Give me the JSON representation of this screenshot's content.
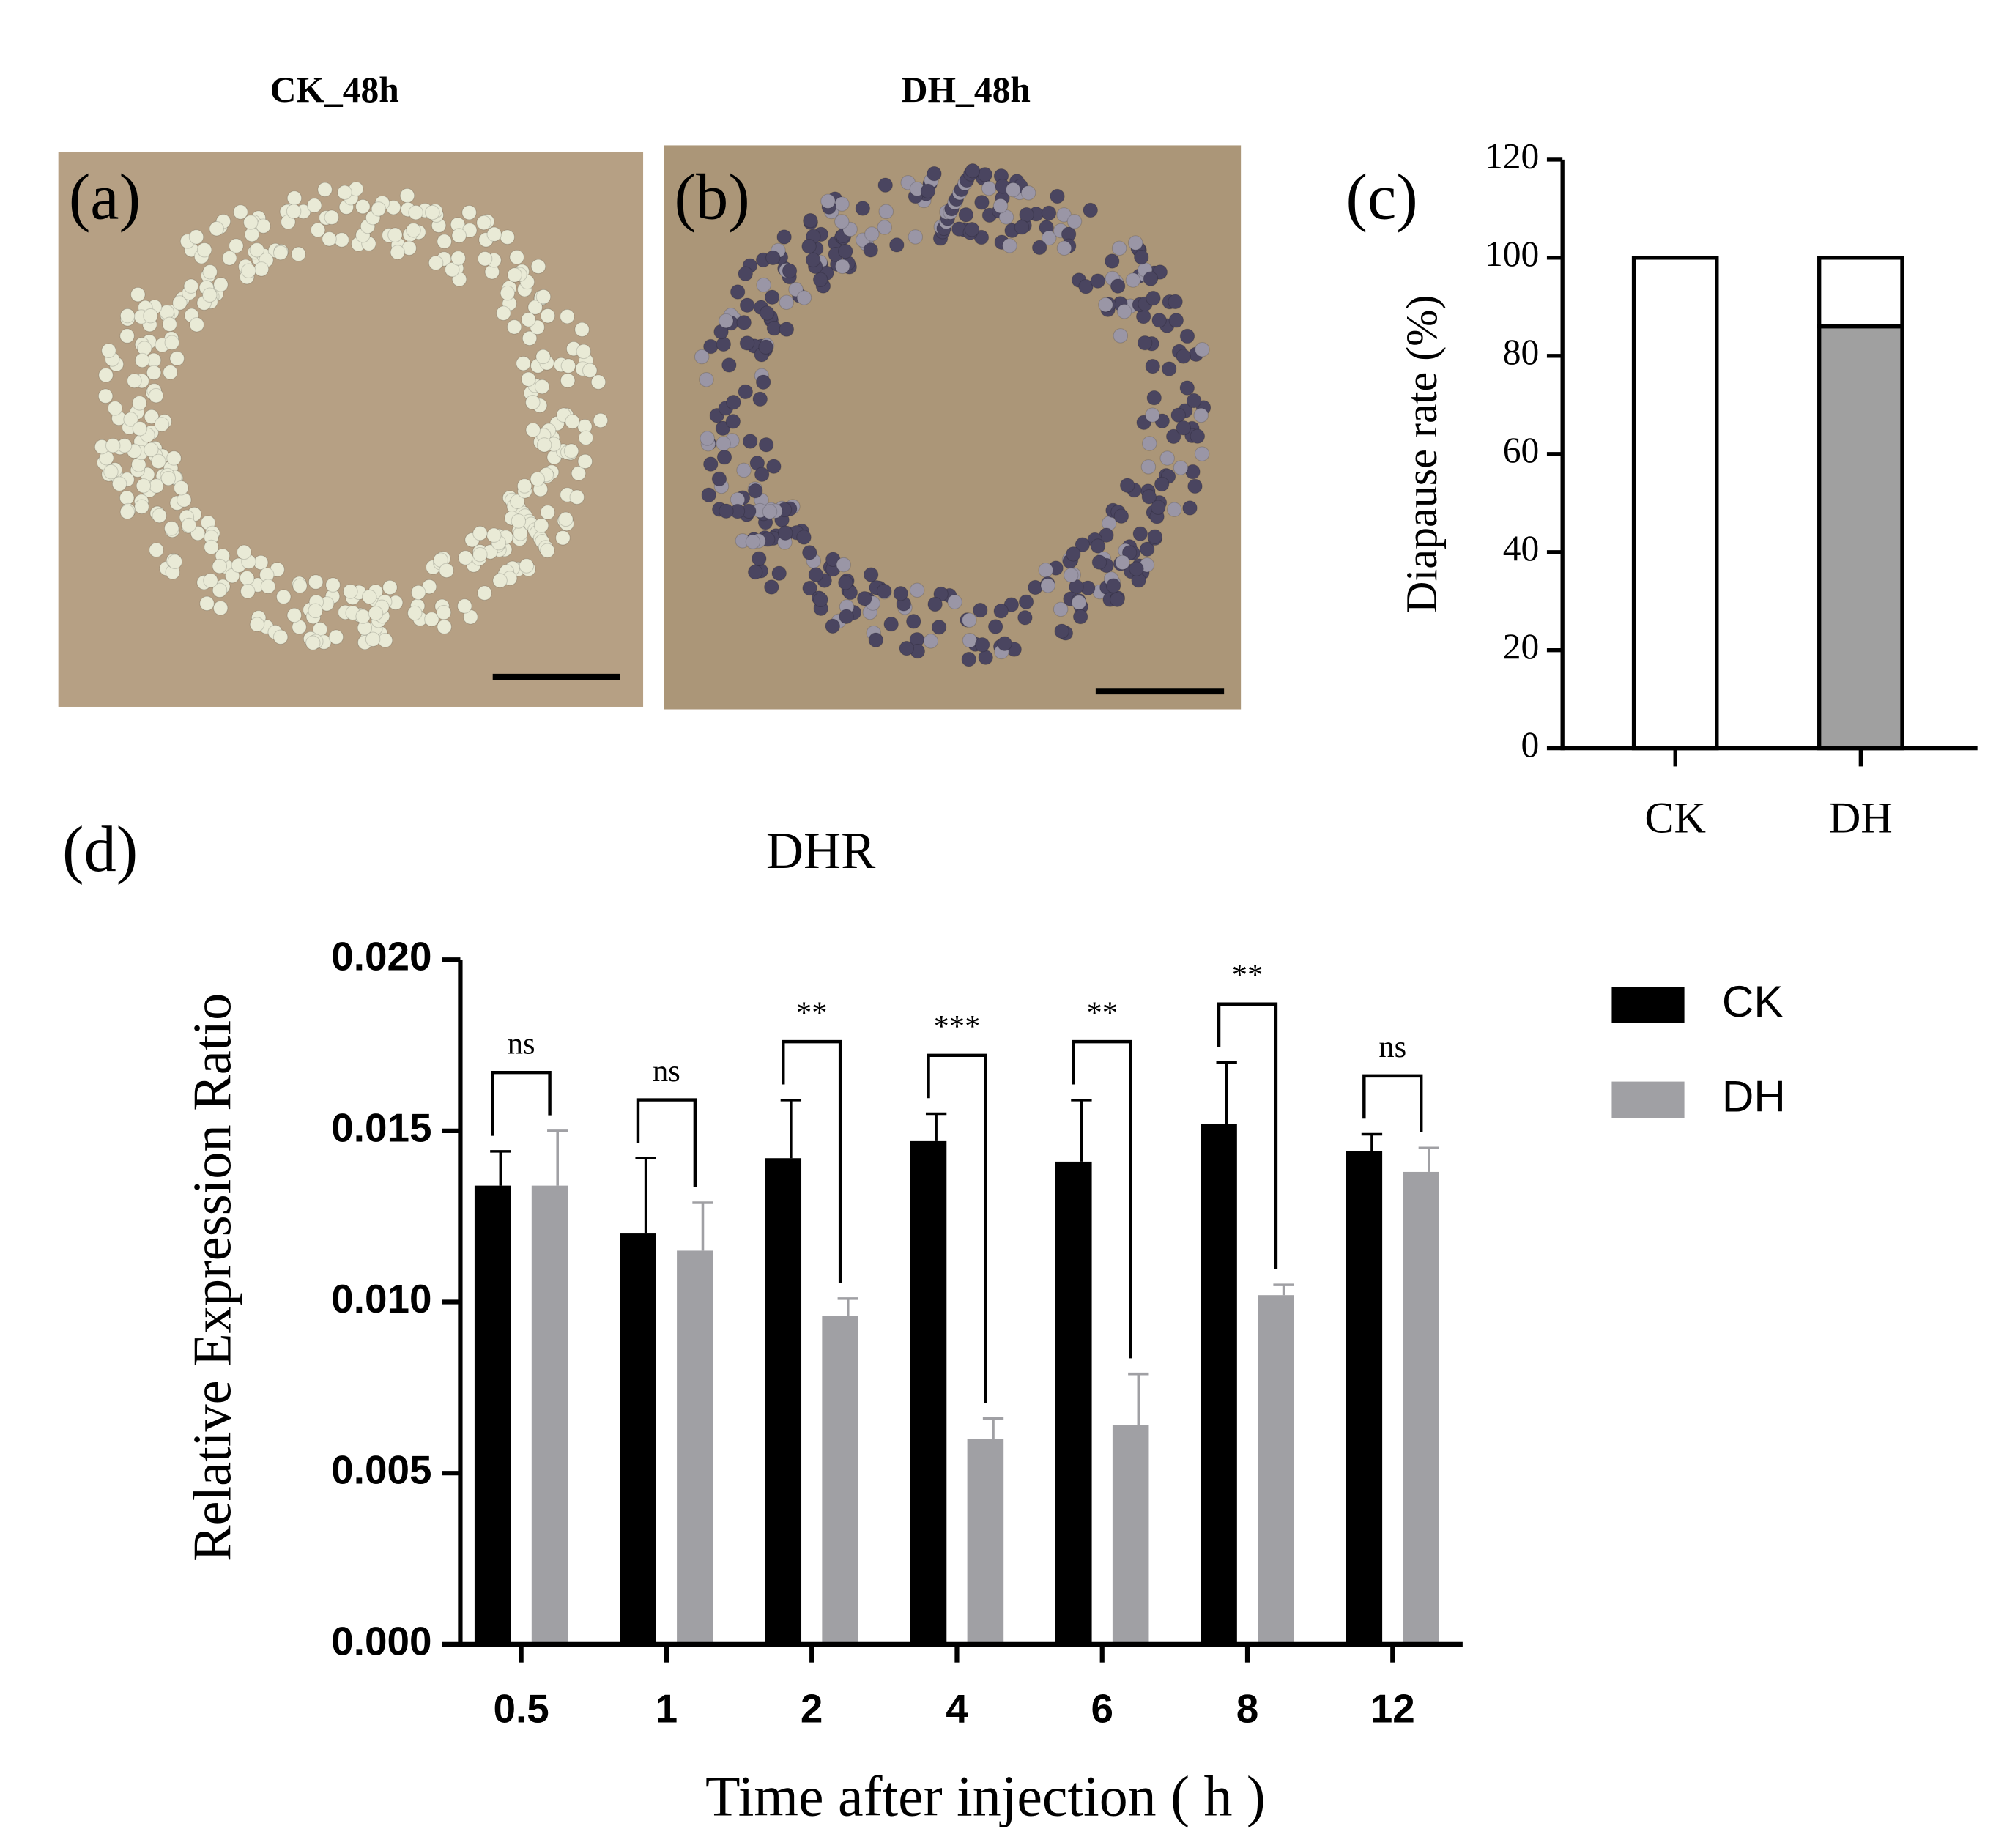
{
  "photos": [
    {
      "title": "CK_48h",
      "label": "(a)"
    },
    {
      "title": "DH_48h",
      "label": "(b)"
    }
  ],
  "chart_data": [
    {
      "type": "stacked_bar",
      "label": "(c)",
      "y_label": "Diapause rate (%)",
      "categories": [
        "CK",
        "DH"
      ],
      "series": [
        {
          "color": "#a0a0a0",
          "values": [
            0,
            86
          ]
        },
        {
          "color": "#ffffff",
          "values": [
            100,
            14
          ]
        }
      ],
      "ylim": [
        0,
        120
      ],
      "yticks": [
        0,
        20,
        40,
        60,
        80,
        100,
        120
      ]
    },
    {
      "type": "grouped_bar_error",
      "label": "(d)",
      "title": "DHR",
      "x_label": "Time after injection ( h )",
      "y_label": "Relative Expression Ratio",
      "categories": [
        "0.5",
        "1",
        "2",
        "4",
        "6",
        "8",
        "12"
      ],
      "series": [
        {
          "name": "CK",
          "color": "#000000",
          "values": [
            0.0134,
            0.012,
            0.0142,
            0.0147,
            0.0141,
            0.0152,
            0.0144
          ],
          "errors": [
            0.001,
            0.0022,
            0.0017,
            0.0008,
            0.0018,
            0.0018,
            0.0005
          ]
        },
        {
          "name": "DH",
          "color": "#a0a0a4",
          "values": [
            0.0134,
            0.0115,
            0.0096,
            0.006,
            0.0064,
            0.0102,
            0.0138
          ],
          "errors": [
            0.0016,
            0.0014,
            0.0005,
            0.0006,
            0.0015,
            0.0003,
            0.0007
          ]
        }
      ],
      "significance": [
        "ns",
        "ns",
        "**",
        "***",
        "**",
        "**",
        "ns"
      ],
      "ylim": [
        0,
        0.02
      ],
      "yticks": [
        {
          "value": 0,
          "label": "0.000"
        },
        {
          "value": 0.005,
          "label": "0.005"
        },
        {
          "value": 0.01,
          "label": "0.010"
        },
        {
          "value": 0.015,
          "label": "0.015"
        },
        {
          "value": 0.02,
          "label": "0.020"
        }
      ],
      "legend": "right"
    }
  ]
}
